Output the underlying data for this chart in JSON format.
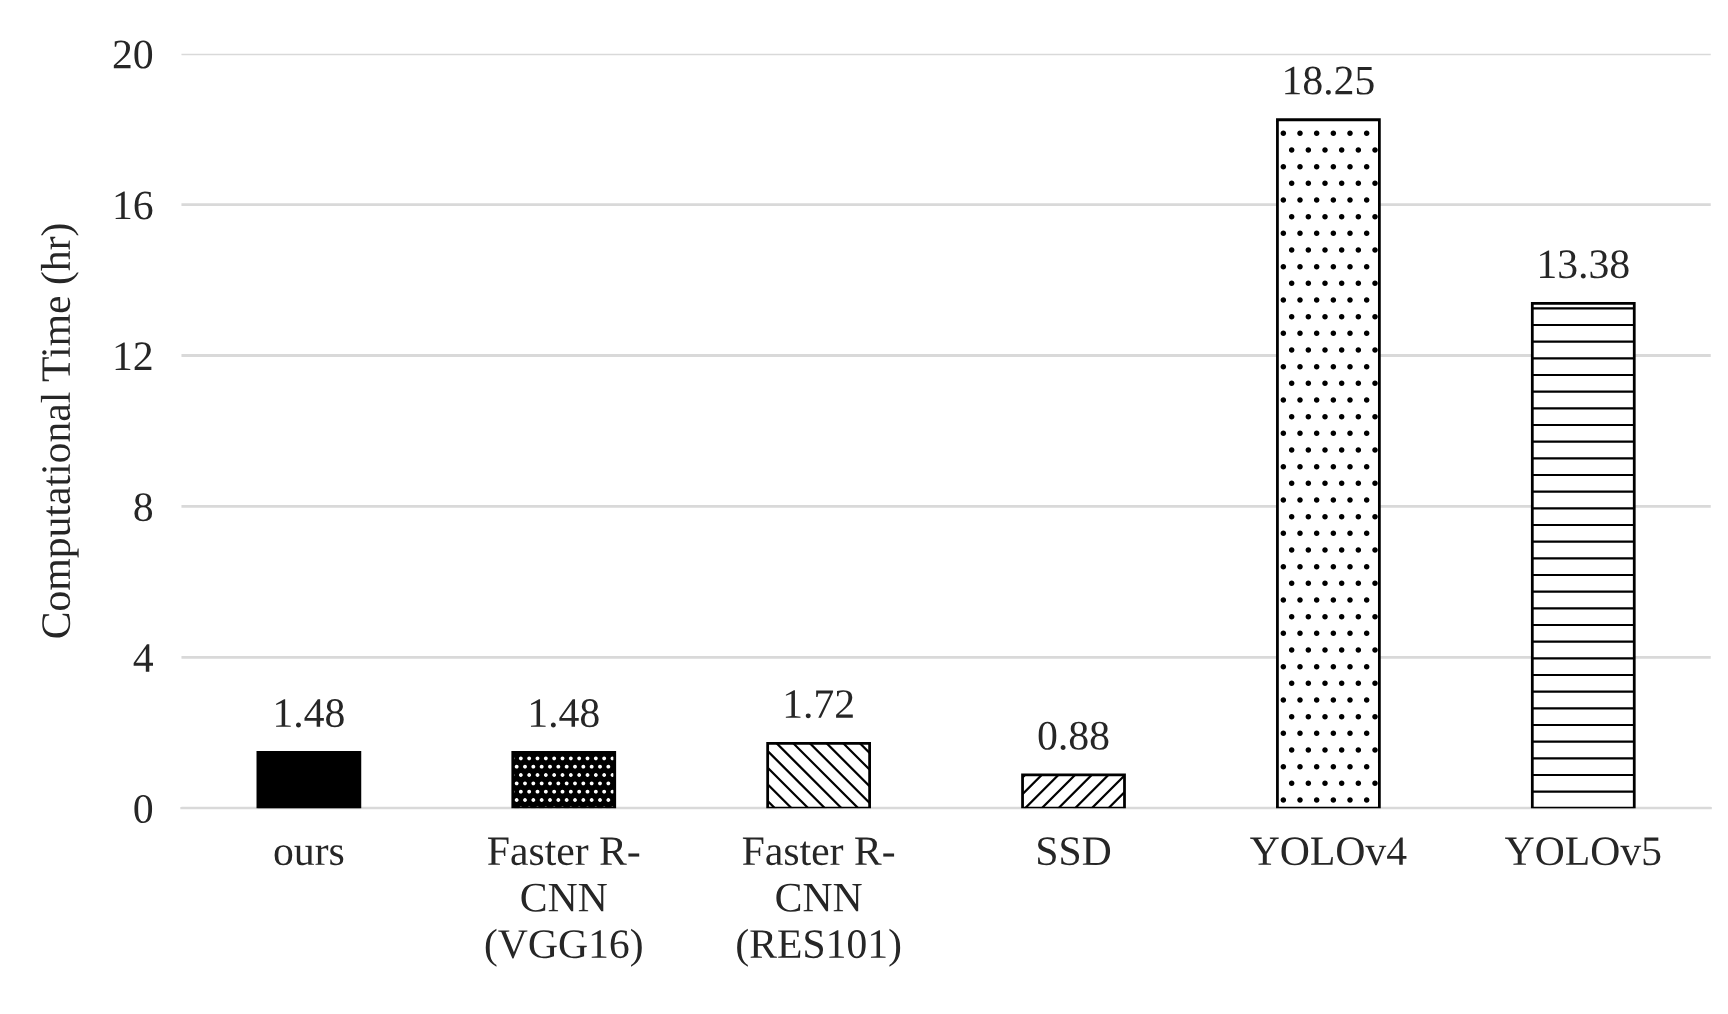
{
  "chart_data": {
    "type": "bar",
    "ylabel": "Computational Time (hr)",
    "categories": [
      "ours",
      "Faster R-\nCNN\n(VGG16)",
      "Faster R-\nCNN\n(RES101)",
      "SSD",
      "YOLOv4",
      "YOLOv5"
    ],
    "values": [
      1.48,
      1.48,
      1.72,
      0.88,
      18.25,
      13.38
    ],
    "colors": [
      "#000000",
      "#000000",
      "#000000",
      "#000000",
      "#000000",
      "#000000"
    ],
    "ylim": [
      0,
      20
    ],
    "yticks": [
      0,
      4,
      8,
      12,
      16,
      20
    ],
    "grid": "y",
    "data_labels": true
  }
}
